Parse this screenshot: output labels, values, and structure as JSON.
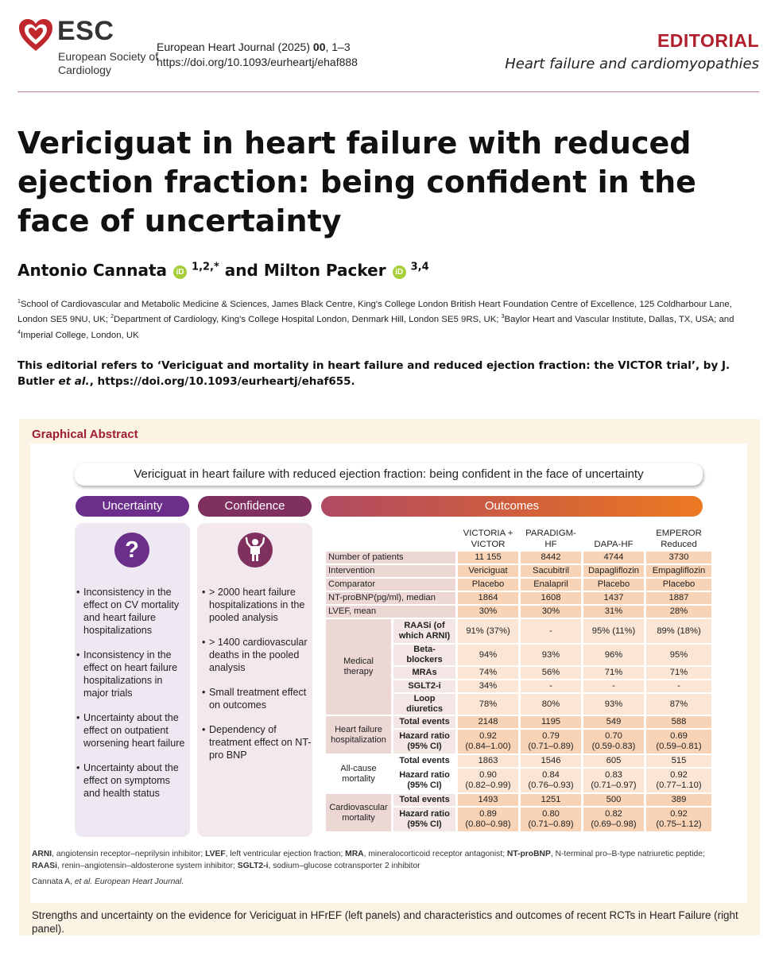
{
  "header": {
    "logo_text": "ESC",
    "logo_sub": "European Society of Cardiology",
    "journal_prefix": "European Heart Journal (2025) ",
    "journal_vol": "00",
    "journal_pages": ", 1–3",
    "doi": "https://doi.org/10.1093/eurheartj/ehaf888",
    "article_type": "EDITORIAL",
    "section": "Heart failure and cardiomyopathies"
  },
  "article": {
    "title": "Vericiguat in heart failure with reduced ejection fraction: being confident in the face of uncertainty",
    "author1": "Antonio Cannata",
    "author1_sup": "1,2,*",
    "and": "and",
    "author2": "Milton Packer",
    "author2_sup": "3,4",
    "orcid_label": "iD",
    "affil_1_num": "1",
    "affil_1": "School of Cardiovascular and Metabolic Medicine & Sciences, James Black Centre, King's College London British Heart Foundation Centre of Excellence, 125 Coldharbour Lane, London SE5 9NU, UK; ",
    "affil_2_num": "2",
    "affil_2": "Department of Cardiology, King's College Hospital London, Denmark Hill, London SE5 9RS, UK; ",
    "affil_3_num": "3",
    "affil_3": "Baylor Heart and Vascular Institute, Dallas, TX, USA; and ",
    "affil_4_num": "4",
    "affil_4": "Imperial College, London, UK",
    "refers_1": "This editorial refers to ‘Vericiguat and mortality in heart failure and reduced ejection fraction: the VICTOR trial’, by J. Butler ",
    "refers_etal": "et al.",
    "refers_2": ", https://doi.org/10.1093/eurheartj/ehaf655."
  },
  "graphical_abstract": {
    "label": "Graphical Abstract",
    "title": "Vericiguat in heart failure with reduced ejection fraction: being confident in the face of uncertainty",
    "uncertainty_label": "Uncertainty",
    "confidence_label": "Confidence",
    "outcomes_label": "Outcomes",
    "question_mark": "?",
    "uncertainty_items": [
      "Inconsistency in the effect on CV mortality and heart failure hospitalizations",
      "Inconsistency in the effect on heart failure hospitalizations in major trials",
      "Uncertainty about the effect on outpatient worsening heart failure",
      "Uncertainty about the effect on symptoms and health status"
    ],
    "confidence_items": [
      "> 2000 heart failure hospitalizations in the pooled analysis",
      "> 1400 cardiovascular deaths in the pooled analysis",
      "Small treatment effect on outcomes",
      "Dependency of treatment effect on NT-pro BNP"
    ],
    "trials": [
      "VICTORIA + VICTOR",
      "PARADIGM-HF",
      "DAPA-HF",
      "EMPEROR Reduced"
    ],
    "rows": {
      "patients": {
        "label": "Number of patients",
        "v": [
          "11 155",
          "8442",
          "4744",
          "3730"
        ]
      },
      "intervention": {
        "label": "Intervention",
        "v": [
          "Vericiguat",
          "Sacubitril",
          "Dapagliflozin",
          "Empagliflozin"
        ]
      },
      "comparator": {
        "label": "Comparator",
        "v": [
          "Placebo",
          "Enalapril",
          "Placebo",
          "Placebo"
        ]
      },
      "ntprobnp": {
        "label": "NT-proBNP(pg/ml), median",
        "v": [
          "1864",
          "1608",
          "1437",
          "1887"
        ]
      },
      "lvef": {
        "label": "LVEF, mean",
        "v": [
          "30%",
          "30%",
          "31%",
          "28%"
        ]
      }
    },
    "medical_therapy": {
      "label": "Medical therapy",
      "rows": [
        {
          "label": "RAASi (of which ARNI)",
          "v": [
            "91% (37%)",
            "-",
            "95% (11%)",
            "89% (18%)"
          ]
        },
        {
          "label": "Beta-blockers",
          "v": [
            "94%",
            "93%",
            "96%",
            "95%"
          ]
        },
        {
          "label": "MRAs",
          "v": [
            "74%",
            "56%",
            "71%",
            "71%"
          ]
        },
        {
          "label": "SGLT2-i",
          "v": [
            "34%",
            "-",
            "-",
            "-"
          ]
        },
        {
          "label": "Loop diuretics",
          "v": [
            "78%",
            "80%",
            "93%",
            "87%"
          ]
        }
      ]
    },
    "outcomes": [
      {
        "label": "Heart failure hospitalization",
        "events_label": "Total events",
        "events": [
          "2148",
          "1195",
          "549",
          "588"
        ],
        "hr_label": "Hazard ratio (95% CI)",
        "hr": [
          "0.92",
          "0.79",
          "0.70",
          "0.69"
        ],
        "ci": [
          "(0.84–1.00)",
          "(0.71–0.89)",
          "(0.59-0.83)",
          "(0.59–0.81)"
        ]
      },
      {
        "label": "All-cause mortality",
        "events_label": "Total events",
        "events": [
          "1863",
          "1546",
          "605",
          "515"
        ],
        "hr_label": "Hazard ratio (95% CI)",
        "hr": [
          "0.90",
          "0.84",
          "0.83",
          "0.92"
        ],
        "ci": [
          "(0.82–0.99)",
          "(0.76–0.93)",
          "(0.71–0.97)",
          "(0.77–1.10)"
        ]
      },
      {
        "label": "Cardiovascular mortality",
        "events_label": "Total events",
        "events": [
          "1493",
          "1251",
          "500",
          "389"
        ],
        "hr_label": "Hazard ratio (95% CI)",
        "hr": [
          "0.89",
          "0.80",
          "0.82",
          "0.92"
        ],
        "ci": [
          "(0.80–0.98)",
          "(0.71–0.89)",
          "(0.69–0.98)",
          "(0.75–1.12)"
        ]
      }
    ],
    "abbreviations": [
      {
        "abbr": "ARNI",
        "text": ", angiotensin receptor–neprilysin inhibitor; "
      },
      {
        "abbr": "LVEF",
        "text": ", left ventricular ejection fraction; "
      },
      {
        "abbr": "MRA",
        "text": ", mineralocorticoid receptor antagonist; "
      },
      {
        "abbr": "NT-proBNP",
        "text": ", N-terminal pro–B-type natriuretic peptide; "
      },
      {
        "abbr": "RAASi",
        "text": ", renin–angiotensin–aldosterone system inhibitor; "
      },
      {
        "abbr": "SGLT2-i",
        "text": ", sodium–glucose cotransporter 2 inhibitor"
      }
    ],
    "citation_prefix": "Cannata A, ",
    "citation_italic": "et al. European Heart Journal."
  },
  "caption": "Strengths and uncertainty on the evidence for Vericiguat in HFrEF (left panels) and characteristics and outcomes of recent RCTs in Heart Failure (right panel).",
  "colors": {
    "brand_red": "#b11f2c",
    "uncertainty": "#6b2e8a",
    "confidence": "#80305f",
    "outcomes_start": "#b04a63",
    "outcomes_end": "#ec7a22"
  }
}
